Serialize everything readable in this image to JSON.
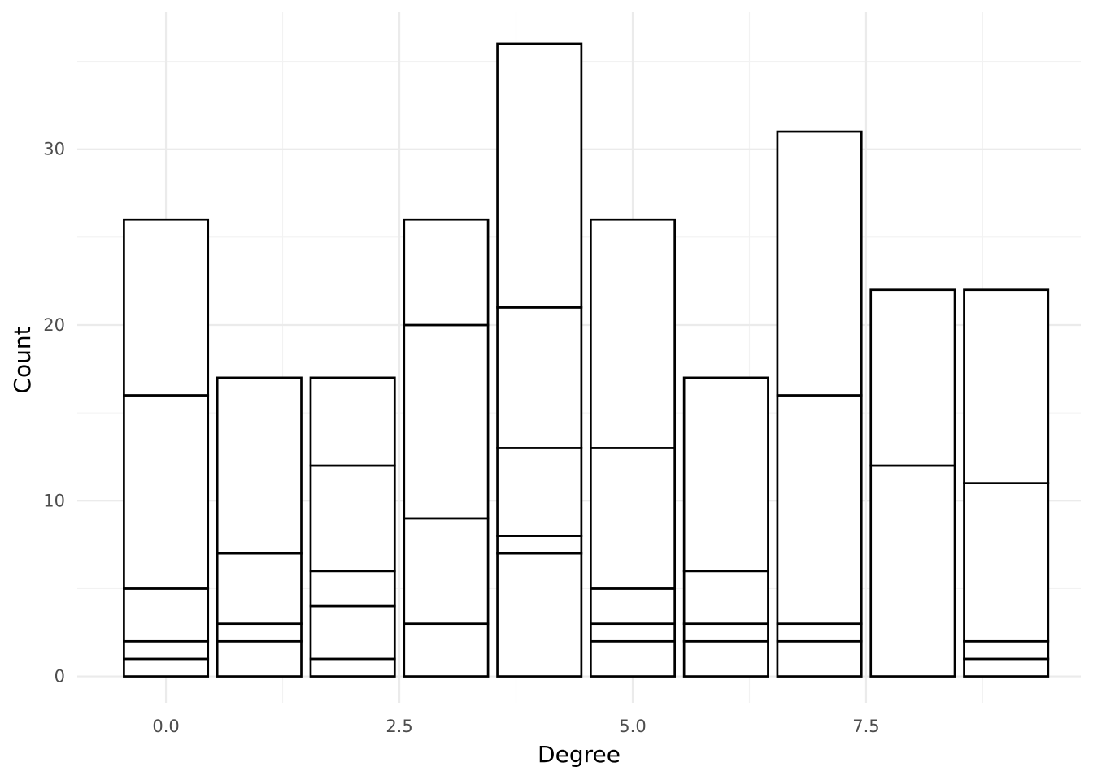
{
  "chart_data": {
    "type": "bar",
    "stacked": true,
    "xlabel": "Degree",
    "ylabel": "Count",
    "x": [
      0,
      1,
      2,
      3,
      4,
      5,
      6,
      7,
      8,
      9
    ],
    "stack_boundaries": [
      [
        1,
        2,
        5,
        16,
        26
      ],
      [
        2,
        3,
        7,
        17
      ],
      [
        1,
        4,
        6,
        12,
        17
      ],
      [
        3,
        9,
        20,
        26
      ],
      [
        7,
        8,
        13,
        21,
        36
      ],
      [
        2,
        3,
        5,
        13,
        26
      ],
      [
        2,
        3,
        6,
        17
      ],
      [
        2,
        3,
        16,
        31
      ],
      [
        12,
        22
      ],
      [
        1,
        2,
        11,
        22
      ]
    ],
    "totals": [
      26,
      17,
      17,
      26,
      36,
      26,
      17,
      31,
      22,
      22
    ],
    "xlim": [
      -0.95,
      9.8
    ],
    "ylim": [
      -1.5,
      37.8
    ],
    "x_ticks": [
      "0.0",
      "2.5",
      "5.0",
      "7.5"
    ],
    "x_tick_values": [
      0,
      2.5,
      5,
      7.5
    ],
    "y_ticks": [
      "0",
      "10",
      "20",
      "30"
    ],
    "y_tick_values": [
      0,
      10,
      20,
      30
    ],
    "bar_fill": "#ffffff",
    "bar_outline": "#000000",
    "grid": true,
    "legend": "none"
  }
}
